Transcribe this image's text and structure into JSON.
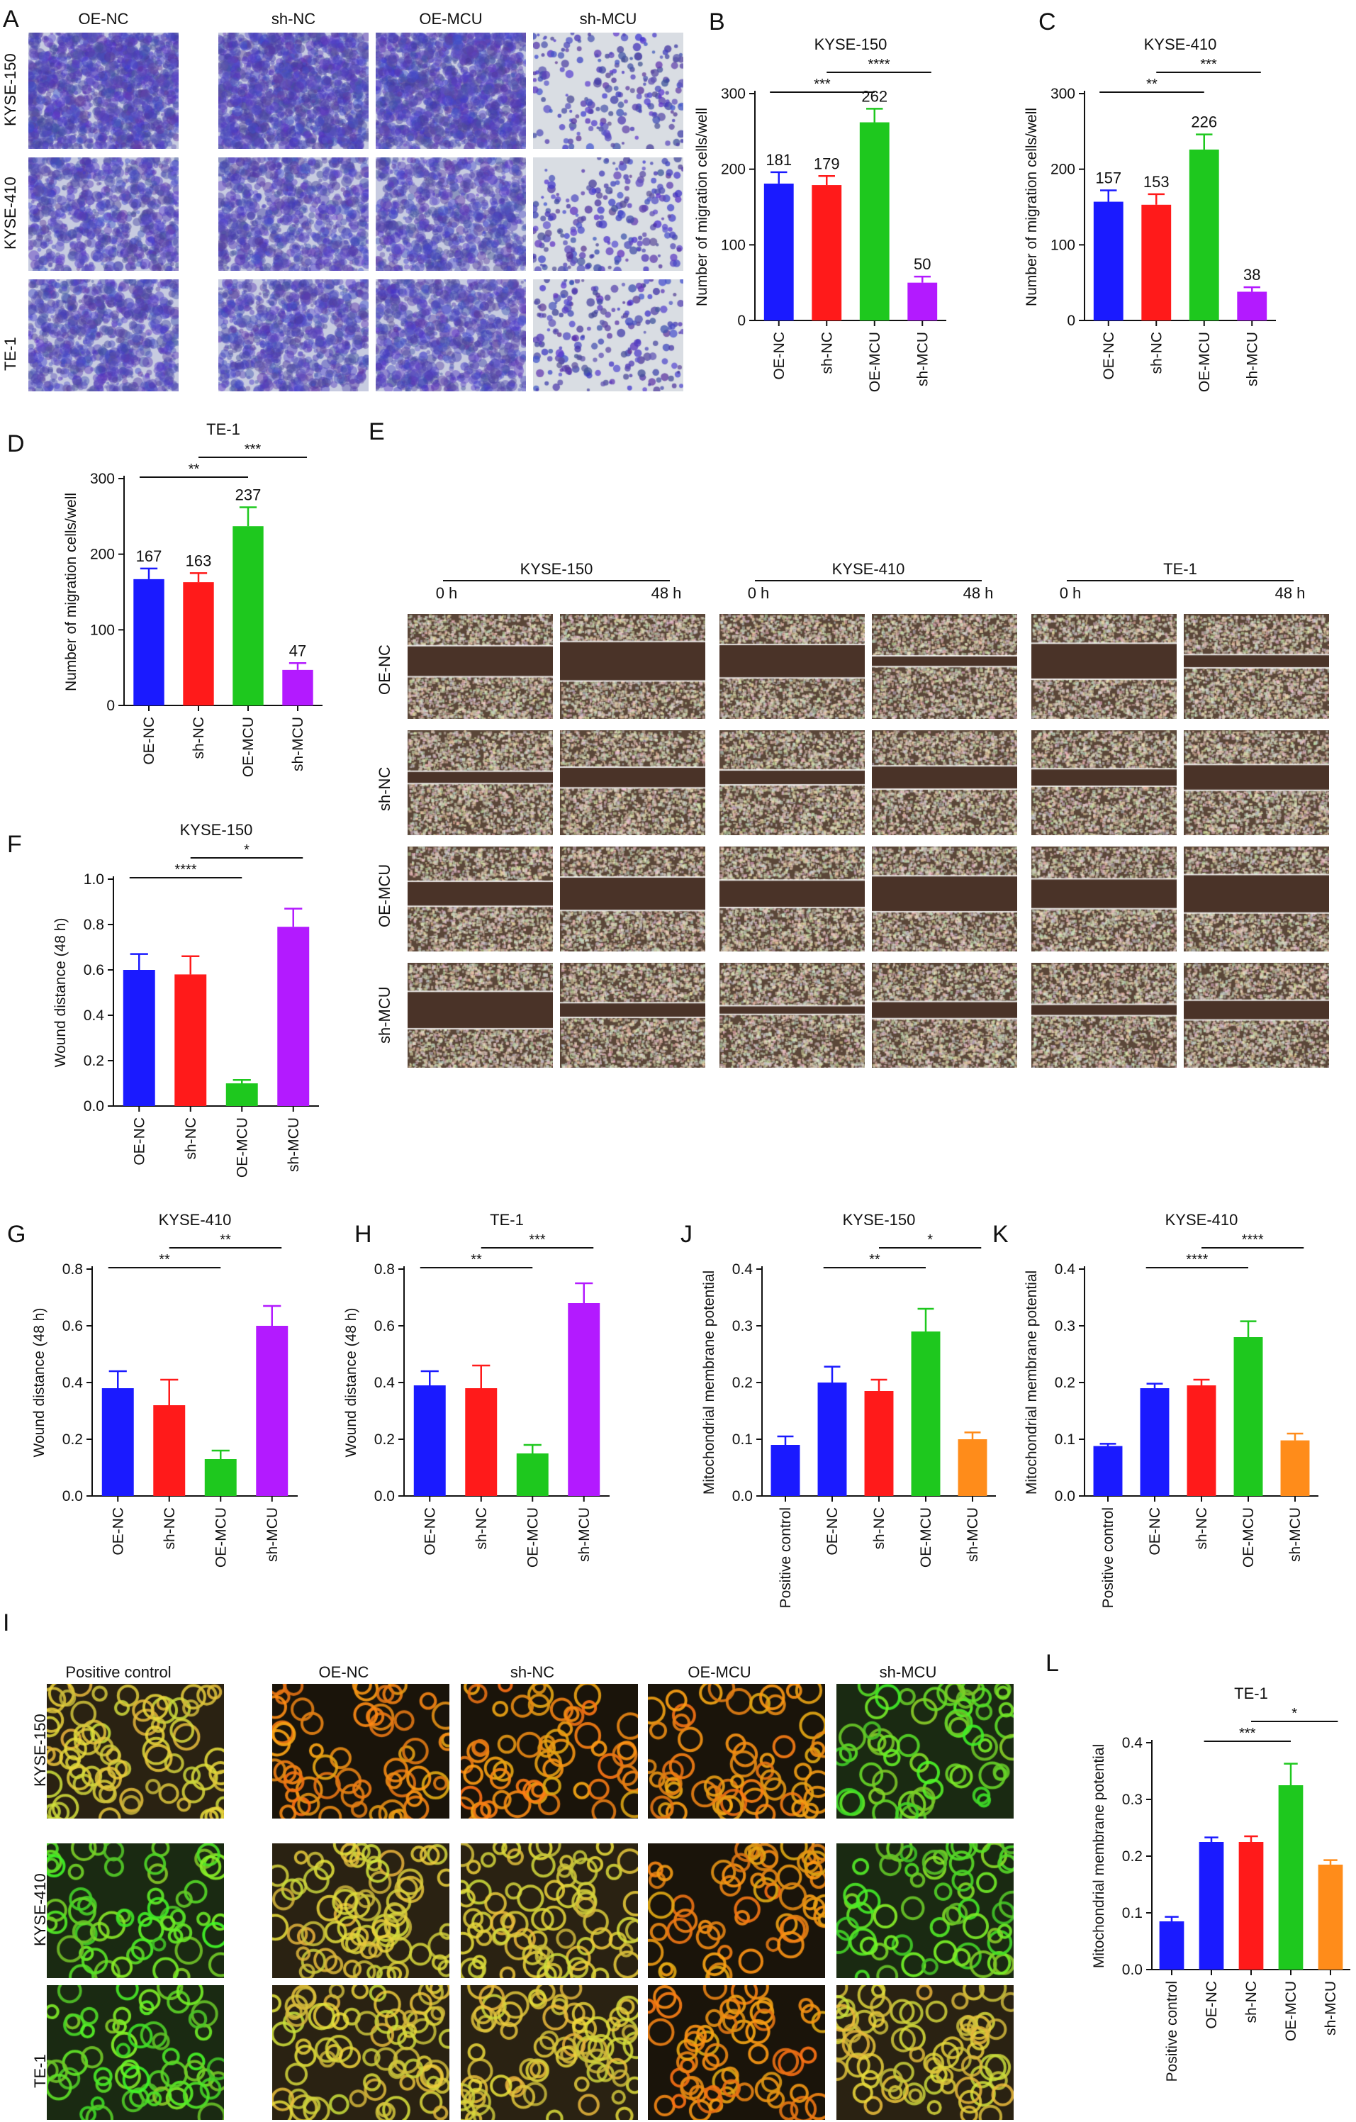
{
  "colors": {
    "OE-NC": "#1a1aff",
    "sh-NC": "#ff1a1a",
    "OE-MCU": "#1ec81e",
    "sh-MCU": "#b31aff",
    "Positive control": "#1a1aff",
    "sh-MCU-mmp": "#ff8c1a"
  },
  "panels": {
    "A": {
      "letter": "A",
      "columns": [
        "OE-NC",
        "sh-NC",
        "OE-MCU",
        "sh-MCU"
      ],
      "rows": [
        "KYSE-150",
        "KYSE-410",
        "TE-1"
      ]
    },
    "E": {
      "letter": "E",
      "groups": [
        {
          "line": "KYSE-150",
          "times": [
            "0 h",
            "48 h"
          ]
        },
        {
          "line": "KYSE-410",
          "times": [
            "0 h",
            "48 h"
          ]
        },
        {
          "line": "TE-1",
          "times": [
            "0 h",
            "48 h"
          ]
        }
      ],
      "rows": [
        "OE-NC",
        "sh-NC",
        "OE-MCU",
        "sh-MCU"
      ]
    },
    "I": {
      "letter": "I",
      "columns": [
        "Positive control",
        "OE-NC",
        "sh-NC",
        "OE-MCU",
        "sh-MCU"
      ],
      "rows": [
        "KYSE-150",
        "KYSE-410",
        "TE-1"
      ]
    }
  },
  "chart_data": [
    {
      "id": "B",
      "letter": "B",
      "type": "bar",
      "title": "KYSE-150",
      "ylabel": "Number of migration cells/well",
      "xlabel": "",
      "categories": [
        "OE-NC",
        "sh-NC",
        "OE-MCU",
        "sh-MCU"
      ],
      "values": [
        181,
        179,
        262,
        50
      ],
      "errors": [
        15,
        12,
        18,
        8
      ],
      "value_labels": [
        "181",
        "179",
        "262",
        "50"
      ],
      "ylim": [
        0,
        300
      ],
      "yticks": [
        "0",
        "100",
        "200",
        "300"
      ],
      "significance": [
        {
          "from": "OE-NC",
          "to": "OE-MCU",
          "label": "***"
        },
        {
          "from": "sh-NC",
          "to": "sh-MCU",
          "label": "****"
        }
      ]
    },
    {
      "id": "C",
      "letter": "C",
      "type": "bar",
      "title": "KYSE-410",
      "ylabel": "Number of migration cells/well",
      "xlabel": "",
      "categories": [
        "OE-NC",
        "sh-NC",
        "OE-MCU",
        "sh-MCU"
      ],
      "values": [
        157,
        153,
        226,
        38
      ],
      "errors": [
        15,
        14,
        20,
        6
      ],
      "value_labels": [
        "157",
        "153",
        "226",
        "38"
      ],
      "ylim": [
        0,
        300
      ],
      "yticks": [
        "0",
        "100",
        "200",
        "300"
      ],
      "significance": [
        {
          "from": "OE-NC",
          "to": "OE-MCU",
          "label": "**"
        },
        {
          "from": "sh-NC",
          "to": "sh-MCU",
          "label": "***"
        }
      ]
    },
    {
      "id": "D",
      "letter": "D",
      "type": "bar",
      "title": "TE-1",
      "ylabel": "Number of migration cells/well",
      "xlabel": "",
      "categories": [
        "OE-NC",
        "sh-NC",
        "OE-MCU",
        "sh-MCU"
      ],
      "values": [
        167,
        163,
        237,
        47
      ],
      "errors": [
        14,
        12,
        25,
        9
      ],
      "value_labels": [
        "167",
        "163",
        "237",
        "47"
      ],
      "ylim": [
        0,
        300
      ],
      "yticks": [
        "0",
        "100",
        "200",
        "300"
      ],
      "significance": [
        {
          "from": "OE-NC",
          "to": "OE-MCU",
          "label": "**"
        },
        {
          "from": "sh-NC",
          "to": "sh-MCU",
          "label": "***"
        }
      ]
    },
    {
      "id": "F",
      "letter": "F",
      "type": "bar",
      "title": "KYSE-150",
      "ylabel": "Wound distance (48 h)",
      "xlabel": "",
      "categories": [
        "OE-NC",
        "sh-NC",
        "OE-MCU",
        "sh-MCU"
      ],
      "values": [
        0.6,
        0.58,
        0.1,
        0.79
      ],
      "errors": [
        0.07,
        0.08,
        0.015,
        0.08
      ],
      "ylim": [
        0,
        1.0
      ],
      "yticks": [
        "0.0",
        "0.2",
        "0.4",
        "0.6",
        "0.8",
        "1.0"
      ],
      "significance": [
        {
          "from": "OE-NC",
          "to": "OE-MCU",
          "label": "****"
        },
        {
          "from": "sh-NC",
          "to": "sh-MCU",
          "label": "*"
        }
      ]
    },
    {
      "id": "G",
      "letter": "G",
      "type": "bar",
      "title": "KYSE-410",
      "ylabel": "Wound distance (48 h)",
      "xlabel": "",
      "categories": [
        "OE-NC",
        "sh-NC",
        "OE-MCU",
        "sh-MCU"
      ],
      "values": [
        0.38,
        0.32,
        0.13,
        0.6
      ],
      "errors": [
        0.06,
        0.09,
        0.03,
        0.07
      ],
      "ylim": [
        0,
        0.8
      ],
      "yticks": [
        "0.0",
        "0.2",
        "0.4",
        "0.6",
        "0.8"
      ],
      "significance": [
        {
          "from": "OE-NC",
          "to": "OE-MCU",
          "label": "**"
        },
        {
          "from": "sh-NC",
          "to": "sh-MCU",
          "label": "**"
        }
      ]
    },
    {
      "id": "H",
      "letter": "H",
      "type": "bar",
      "title": "TE-1",
      "ylabel": "Wound distance (48 h)",
      "xlabel": "",
      "categories": [
        "OE-NC",
        "sh-NC",
        "OE-MCU",
        "sh-MCU"
      ],
      "values": [
        0.39,
        0.38,
        0.15,
        0.68
      ],
      "errors": [
        0.05,
        0.08,
        0.03,
        0.07
      ],
      "ylim": [
        0,
        0.8
      ],
      "yticks": [
        "0.0",
        "0.2",
        "0.4",
        "0.6",
        "0.8"
      ],
      "significance": [
        {
          "from": "OE-NC",
          "to": "OE-MCU",
          "label": "**"
        },
        {
          "from": "sh-NC",
          "to": "sh-MCU",
          "label": "***"
        }
      ]
    },
    {
      "id": "J",
      "letter": "J",
      "type": "bar",
      "title": "KYSE-150",
      "ylabel": "Mitochondrial membrane potential",
      "xlabel": "",
      "categories": [
        "Positive control",
        "OE-NC",
        "sh-NC",
        "OE-MCU",
        "sh-MCU"
      ],
      "values": [
        0.09,
        0.2,
        0.185,
        0.29,
        0.1
      ],
      "errors": [
        0.015,
        0.028,
        0.02,
        0.04,
        0.012
      ],
      "ylim": [
        0,
        0.4
      ],
      "yticks": [
        "0.0",
        "0.1",
        "0.2",
        "0.3",
        "0.4"
      ],
      "significance": [
        {
          "from": "OE-NC",
          "to": "OE-MCU",
          "label": "**"
        },
        {
          "from": "sh-NC",
          "to": "sh-MCU",
          "label": "*"
        }
      ]
    },
    {
      "id": "K",
      "letter": "K",
      "type": "bar",
      "title": "KYSE-410",
      "ylabel": "Mitochondrial membrane potential",
      "xlabel": "",
      "categories": [
        "Positive control",
        "OE-NC",
        "sh-NC",
        "OE-MCU",
        "sh-MCU"
      ],
      "values": [
        0.088,
        0.19,
        0.195,
        0.28,
        0.098
      ],
      "errors": [
        0.004,
        0.008,
        0.01,
        0.028,
        0.012
      ],
      "ylim": [
        0,
        0.4
      ],
      "yticks": [
        "0.0",
        "0.1",
        "0.2",
        "0.3",
        "0.4"
      ],
      "significance": [
        {
          "from": "OE-NC",
          "to": "OE-MCU",
          "label": "****"
        },
        {
          "from": "sh-NC",
          "to": "sh-MCU",
          "label": "****"
        }
      ]
    },
    {
      "id": "L",
      "letter": "L",
      "type": "bar",
      "title": "TE-1",
      "ylabel": "Mitochondrial membrane potential",
      "xlabel": "",
      "categories": [
        "Positive control",
        "OE-NC",
        "sh-NC",
        "OE-MCU",
        "sh-MCU"
      ],
      "values": [
        0.085,
        0.225,
        0.225,
        0.325,
        0.185
      ],
      "errors": [
        0.008,
        0.008,
        0.01,
        0.038,
        0.008
      ],
      "ylim": [
        0,
        0.4
      ],
      "yticks": [
        "0.0",
        "0.1",
        "0.2",
        "0.3",
        "0.4"
      ],
      "significance": [
        {
          "from": "OE-NC",
          "to": "OE-MCU",
          "label": "***"
        },
        {
          "from": "sh-NC",
          "to": "sh-MCU",
          "label": "*"
        }
      ]
    }
  ]
}
